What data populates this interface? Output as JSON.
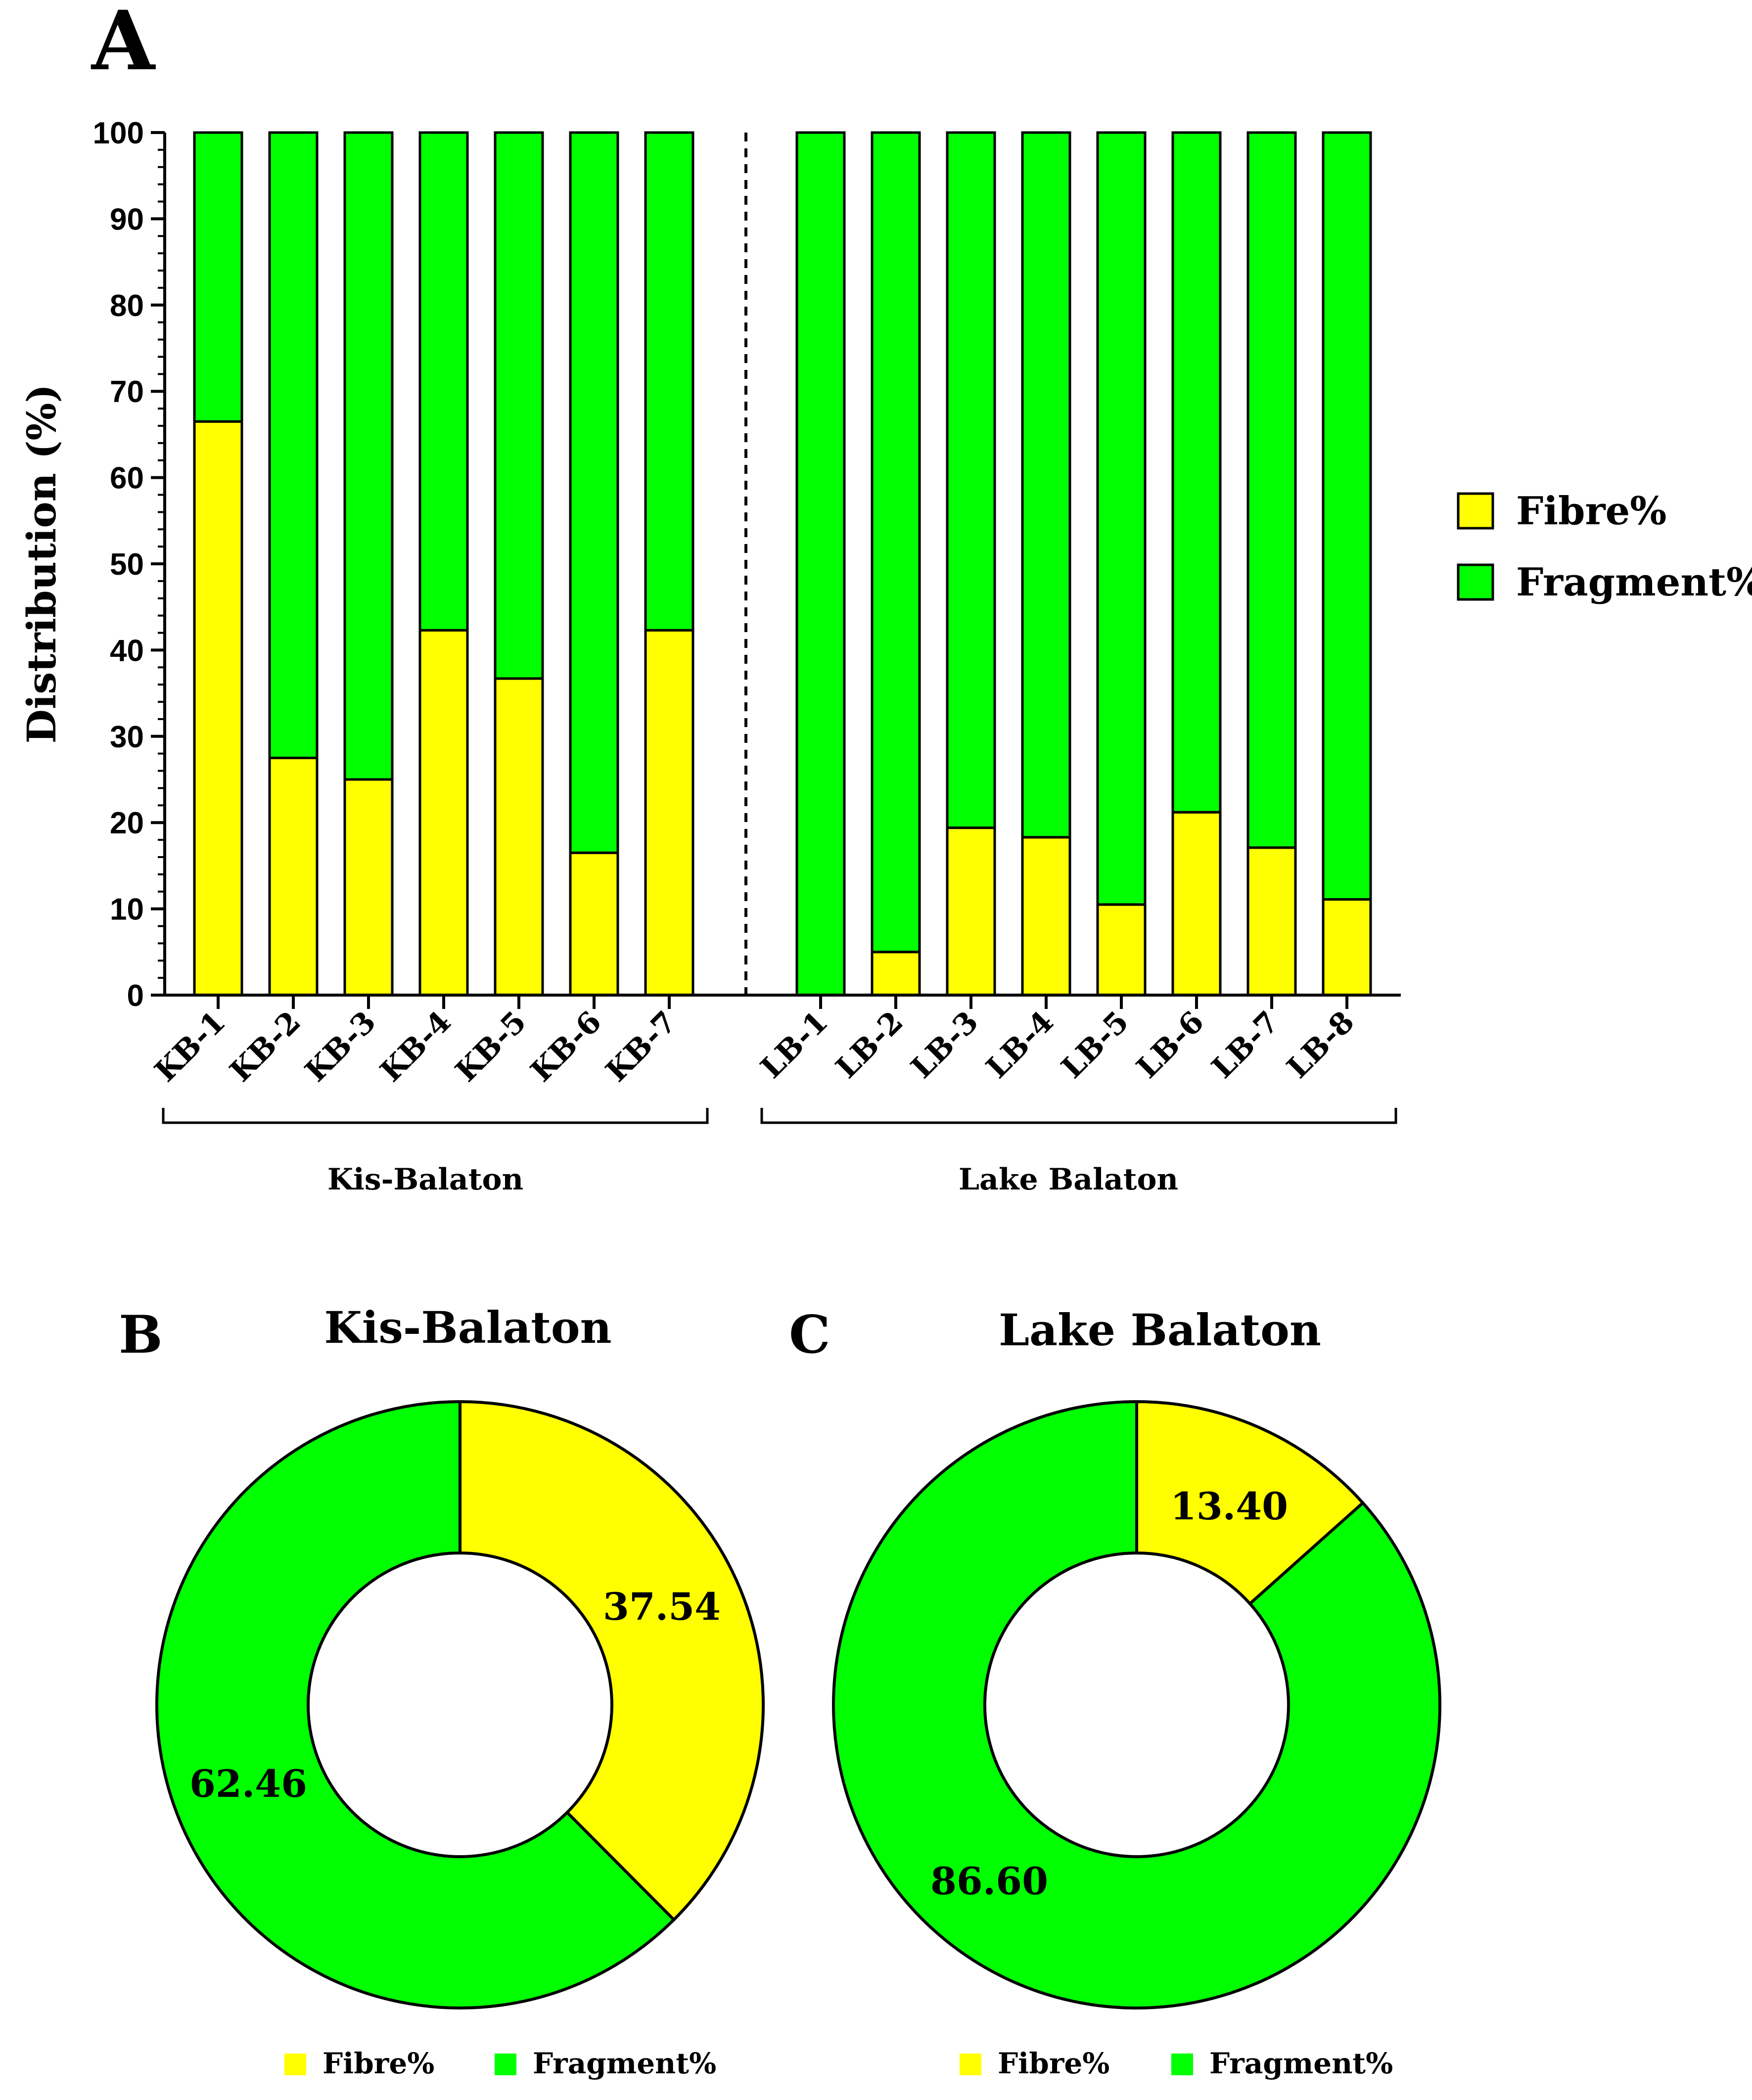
{
  "panels": {
    "a": "A",
    "b": "B",
    "c": "C"
  },
  "colors": {
    "fibre": "#ffff00",
    "fragment": "#00ff00",
    "stroke": "#000000"
  },
  "chart_data": [
    {
      "id": "A",
      "type": "bar",
      "stacked": true,
      "ylabel": "Distribution (%)",
      "ylim": [
        0,
        100
      ],
      "yticks": [
        "0",
        "10",
        "20",
        "30",
        "40",
        "50",
        "60",
        "70",
        "80",
        "90",
        "100"
      ],
      "categories": [
        "KB-1",
        "KB-2",
        "KB-3",
        "KB-4",
        "KB-5",
        "KB-6",
        "KB-7",
        "LB-1",
        "LB-2",
        "LB-3",
        "LB-4",
        "LB-5",
        "LB-6",
        "LB-7",
        "LB-8"
      ],
      "series": [
        {
          "name": "Fibre%",
          "values": [
            66.5,
            27.5,
            25.0,
            42.3,
            36.7,
            16.5,
            42.3,
            0,
            5.0,
            19.4,
            18.3,
            10.5,
            21.2,
            17.1,
            11.1
          ]
        },
        {
          "name": "Fragment%",
          "values": [
            33.5,
            72.5,
            75.0,
            57.7,
            63.3,
            83.5,
            57.7,
            100,
            95.0,
            80.6,
            81.7,
            89.5,
            78.8,
            82.9,
            88.9
          ]
        }
      ],
      "groups": [
        {
          "label": "Kis-Balaton",
          "categories": [
            "KB-1",
            "KB-2",
            "KB-3",
            "KB-4",
            "KB-5",
            "KB-6",
            "KB-7"
          ]
        },
        {
          "label": "Lake Balaton",
          "categories": [
            "LB-1",
            "LB-2",
            "LB-3",
            "LB-4",
            "LB-5",
            "LB-6",
            "LB-7",
            "LB-8"
          ]
        }
      ],
      "legend": [
        "Fibre%",
        "Fragment%"
      ]
    },
    {
      "id": "B",
      "type": "pie",
      "donut": true,
      "title": "Kis-Balaton",
      "slices": [
        {
          "name": "Fibre%",
          "value": 37.54,
          "label": "37.54"
        },
        {
          "name": "Fragment%",
          "value": 62.46,
          "label": "62.46"
        }
      ],
      "legend": [
        "Fibre%",
        "Fragment%"
      ]
    },
    {
      "id": "C",
      "type": "pie",
      "donut": true,
      "title": "Lake Balaton",
      "slices": [
        {
          "name": "Fibre%",
          "value": 13.4,
          "label": "13.40"
        },
        {
          "name": "Fragment%",
          "value": 86.6,
          "label": "86.60"
        }
      ],
      "legend": [
        "Fibre%",
        "Fragment%"
      ]
    }
  ]
}
